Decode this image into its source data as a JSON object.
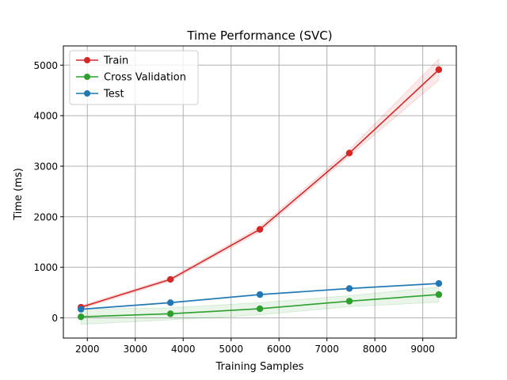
{
  "chart_data": {
    "type": "line",
    "title": "Time Performance (SVC)",
    "xlabel": "Training Samples",
    "ylabel": "Time (ms)",
    "xlim": [
      1500,
      9700
    ],
    "ylim": [
      -400,
      5380
    ],
    "xticks": [
      2000,
      3000,
      4000,
      5000,
      6000,
      7000,
      8000,
      9000
    ],
    "yticks": [
      0,
      1000,
      2000,
      3000,
      4000,
      5000
    ],
    "grid": true,
    "legend_position": "top-left",
    "x": [
      1867,
      3734,
      5601,
      7468,
      9335
    ],
    "series": [
      {
        "name": "Train",
        "color": "#d62728",
        "values": [
          210,
          760,
          1750,
          3260,
          4910
        ],
        "band_lower": [
          180,
          730,
          1700,
          3200,
          4700
        ],
        "band_upper": [
          240,
          790,
          1800,
          3330,
          5120
        ]
      },
      {
        "name": "Cross Validation",
        "color": "#2ca02c",
        "values": [
          20,
          80,
          180,
          330,
          460
        ],
        "band_lower": [
          -130,
          -40,
          60,
          220,
          310
        ],
        "band_upper": [
          170,
          200,
          300,
          440,
          610
        ]
      },
      {
        "name": "Test",
        "color": "#1f77b4",
        "values": [
          170,
          300,
          460,
          580,
          680
        ],
        "band_lower": [
          160,
          290,
          450,
          570,
          670
        ],
        "band_upper": [
          180,
          310,
          470,
          590,
          690
        ]
      }
    ]
  }
}
